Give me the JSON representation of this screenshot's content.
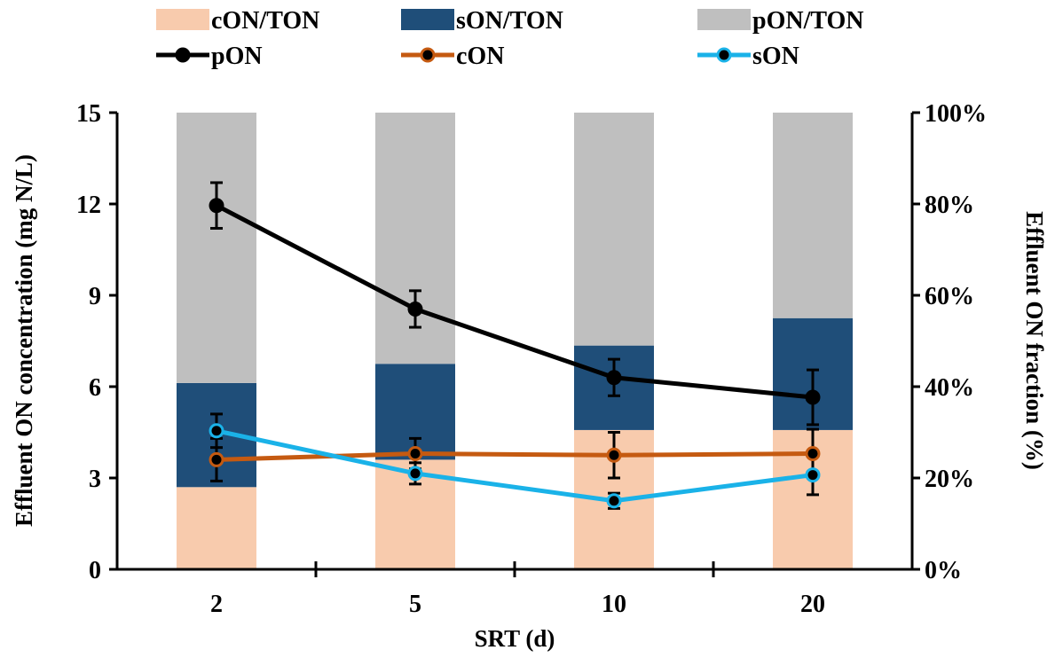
{
  "chart_data": {
    "type": "bar",
    "categories": [
      "2",
      "5",
      "10",
      "20"
    ],
    "xlabel": "SRT (d)",
    "ylabel": "Effluent  ON concentration (mg N/L)",
    "ylabel_right": "Effluent ON fraction (%)",
    "ylim": [
      0,
      15
    ],
    "ylim_right": [
      0,
      100
    ],
    "yticks": [
      "0",
      "3",
      "6",
      "9",
      "12",
      "15"
    ],
    "yticks_right": [
      "0%",
      "20%",
      "40%",
      "60%",
      "80%",
      "100%"
    ],
    "legend_position": "top",
    "stacked_series": [
      {
        "name": "cON/TON",
        "axis": "right",
        "values": [
          18,
          24,
          30.5,
          30.5
        ],
        "color": "#f8cbad"
      },
      {
        "name": "sON/TON",
        "axis": "right",
        "values": [
          22.8,
          21,
          18.5,
          24.5
        ],
        "color": "#1f4e79"
      },
      {
        "name": "pON/TON",
        "axis": "right",
        "values": [
          59.2,
          55,
          51,
          45
        ],
        "color": "#bfbfbf"
      }
    ],
    "line_series": [
      {
        "name": "pON",
        "axis": "left",
        "values": [
          11.95,
          8.55,
          6.3,
          5.65
        ],
        "errors": [
          0.75,
          0.6,
          0.6,
          0.9
        ],
        "color": "#000000"
      },
      {
        "name": "cON",
        "axis": "left",
        "values": [
          3.6,
          3.8,
          3.75,
          3.8
        ],
        "errors": [
          0.7,
          0.5,
          0.75,
          0.8
        ],
        "color": "#c55a11"
      },
      {
        "name": "sON",
        "axis": "left",
        "values": [
          4.55,
          3.15,
          2.25,
          3.1
        ],
        "errors": [
          0.55,
          0.35,
          0.25,
          0.65
        ],
        "color": "#1ab2e8"
      }
    ]
  }
}
